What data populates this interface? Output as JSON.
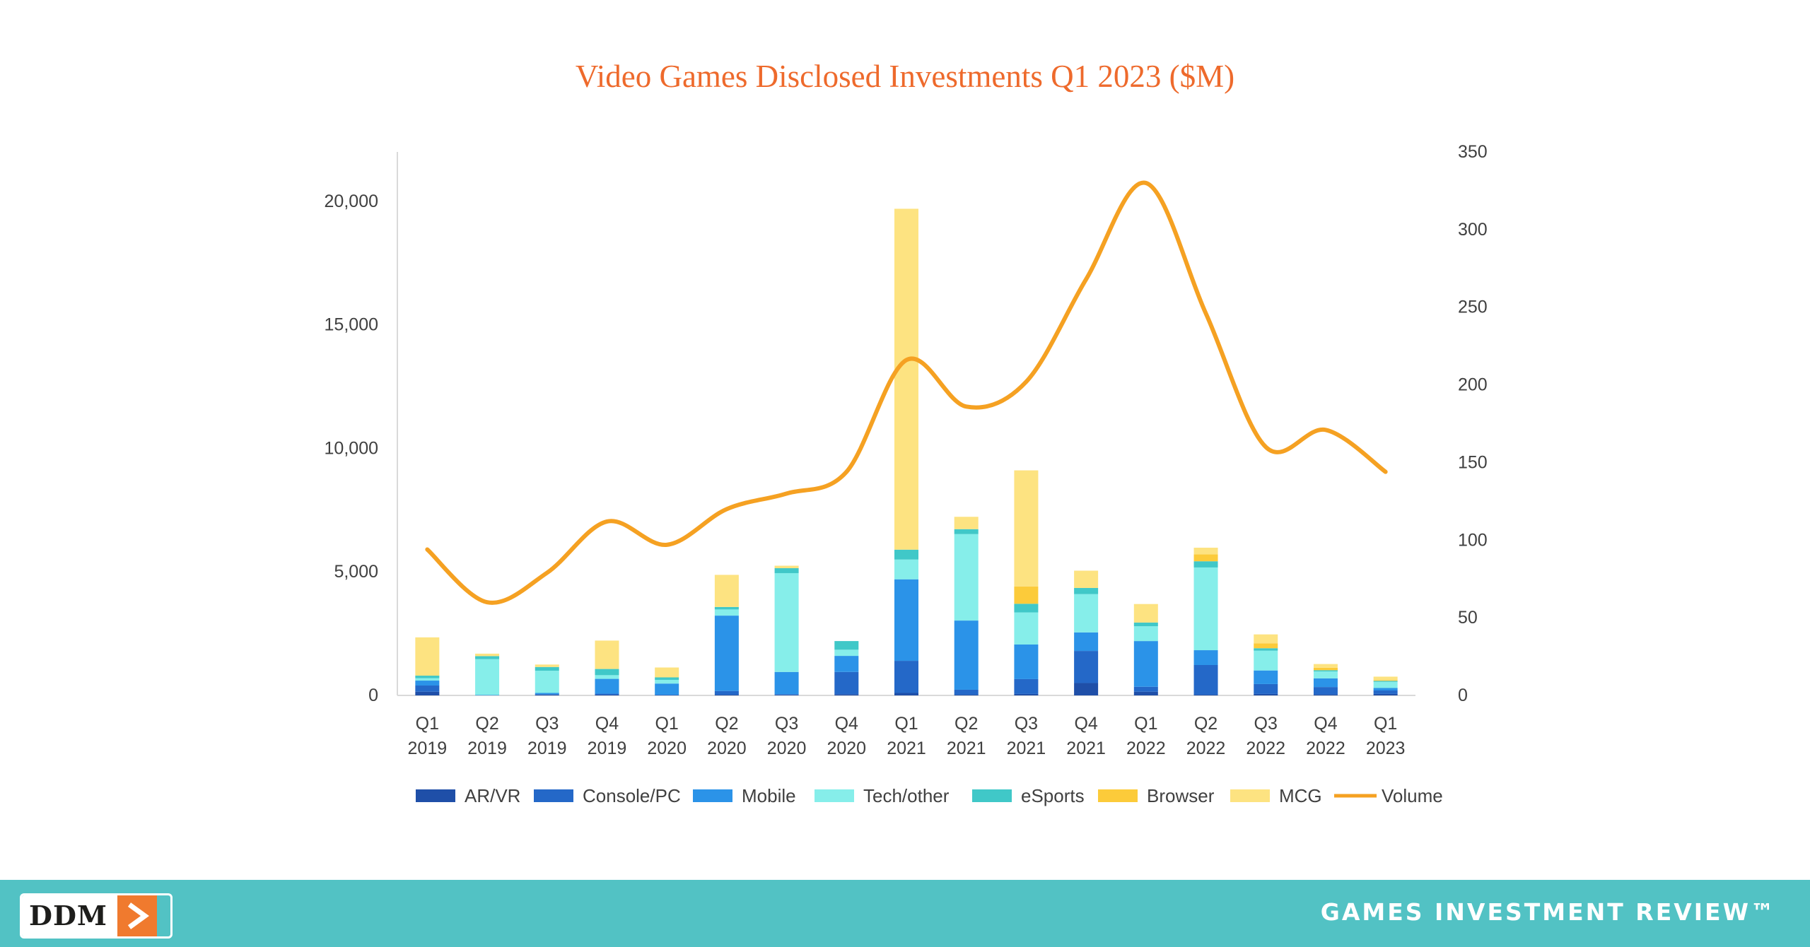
{
  "chart_data": {
    "type": "bar",
    "stacked": true,
    "title": "Video Games Disclosed Investments Q1 2023 ($M)",
    "categories": [
      [
        "Q1",
        "2019"
      ],
      [
        "Q2",
        "2019"
      ],
      [
        "Q3",
        "2019"
      ],
      [
        "Q4",
        "2019"
      ],
      [
        "Q1",
        "2020"
      ],
      [
        "Q2",
        "2020"
      ],
      [
        "Q3",
        "2020"
      ],
      [
        "Q4",
        "2020"
      ],
      [
        "Q1",
        "2021"
      ],
      [
        "Q2",
        "2021"
      ],
      [
        "Q3",
        "2021"
      ],
      [
        "Q4",
        "2021"
      ],
      [
        "Q1",
        "2022"
      ],
      [
        "Q2",
        "2022"
      ],
      [
        "Q3",
        "2022"
      ],
      [
        "Q4",
        "2022"
      ],
      [
        "Q1",
        "2023"
      ]
    ],
    "y_left": {
      "min": 0,
      "max": 22000,
      "ticks": [
        0,
        5000,
        10000,
        15000,
        20000
      ],
      "tick_labels": [
        "0",
        "5,000",
        "10,000",
        "15,000",
        "20,000"
      ]
    },
    "y_right": {
      "min": 0,
      "max": 350,
      "ticks": [
        0,
        50,
        100,
        150,
        200,
        250,
        300,
        350
      ],
      "tick_labels": [
        "0",
        "50",
        "100",
        "150",
        "200",
        "250",
        "300",
        "350"
      ]
    },
    "series": [
      {
        "name": "AR/VR",
        "color": "#1f4fa8",
        "axis": "left",
        "values": [
          150,
          0,
          30,
          30,
          0,
          30,
          20,
          50,
          100,
          30,
          60,
          500,
          150,
          30,
          60,
          40,
          60
        ]
      },
      {
        "name": "Console/PC",
        "color": "#2468c8",
        "axis": "left",
        "values": [
          250,
          0,
          20,
          40,
          30,
          150,
          30,
          900,
          1300,
          200,
          600,
          1300,
          200,
          1200,
          400,
          300,
          140
        ]
      },
      {
        "name": "Mobile",
        "color": "#2b93e8",
        "axis": "left",
        "values": [
          200,
          20,
          50,
          600,
          450,
          3050,
          900,
          650,
          3300,
          2800,
          1400,
          750,
          1850,
          600,
          550,
          350,
          100
        ]
      },
      {
        "name": "Tech/other",
        "color": "#86eeea",
        "axis": "left",
        "values": [
          100,
          1450,
          900,
          150,
          150,
          250,
          4000,
          250,
          800,
          3500,
          1300,
          1550,
          600,
          3350,
          800,
          280,
          250
        ]
      },
      {
        "name": "eSports",
        "color": "#40c8c8",
        "axis": "left",
        "values": [
          100,
          120,
          150,
          250,
          100,
          100,
          200,
          350,
          400,
          200,
          350,
          250,
          150,
          250,
          100,
          50,
          40
        ]
      },
      {
        "name": "Browser",
        "color": "#fccb3a",
        "axis": "left",
        "values": [
          0,
          0,
          0,
          0,
          0,
          0,
          0,
          0,
          0,
          0,
          700,
          0,
          0,
          280,
          200,
          100,
          30
        ]
      },
      {
        "name": "MCG",
        "color": "#fde381",
        "axis": "left",
        "values": [
          1550,
          100,
          100,
          1150,
          400,
          1300,
          100,
          0,
          13800,
          500,
          4700,
          700,
          750,
          270,
          360,
          150,
          140
        ]
      },
      {
        "name": "Volume",
        "type": "line",
        "color": "#f5a122",
        "axis": "right",
        "values": [
          94,
          60,
          79,
          112,
          97,
          120,
          130,
          144,
          216,
          186,
          202,
          268,
          330,
          246,
          160,
          171,
          144
        ]
      }
    ],
    "legend_position": "bottom",
    "grid": false
  },
  "footer": {
    "logo_text": "DDM",
    "brand": "GAMES INVESTMENT REVIEW™"
  }
}
